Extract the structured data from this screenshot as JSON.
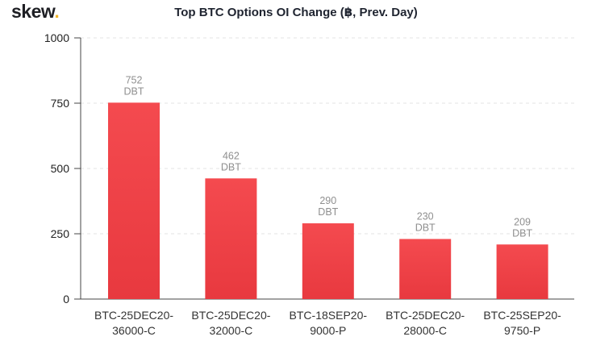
{
  "brand": {
    "name": "skew",
    "dot": "."
  },
  "chart_data": {
    "type": "bar",
    "title": "Top BTC Options OI Change (฿, Prev. Day)",
    "xlabel": "",
    "ylabel": "",
    "ylim": [
      0,
      1000
    ],
    "yticks": [
      0,
      250,
      500,
      750,
      1000
    ],
    "grid": true,
    "categories": [
      [
        "BTC-25DEC20-",
        "36000-C"
      ],
      [
        "BTC-25DEC20-",
        "32000-C"
      ],
      [
        "BTC-18SEP20-",
        "9000-P"
      ],
      [
        "BTC-25DEC20-",
        "28000-C"
      ],
      [
        "BTC-25SEP20-",
        "9750-P"
      ]
    ],
    "values": [
      752,
      462,
      290,
      230,
      209
    ],
    "value_unit": "DBT",
    "bar_color": "#f0444a"
  }
}
